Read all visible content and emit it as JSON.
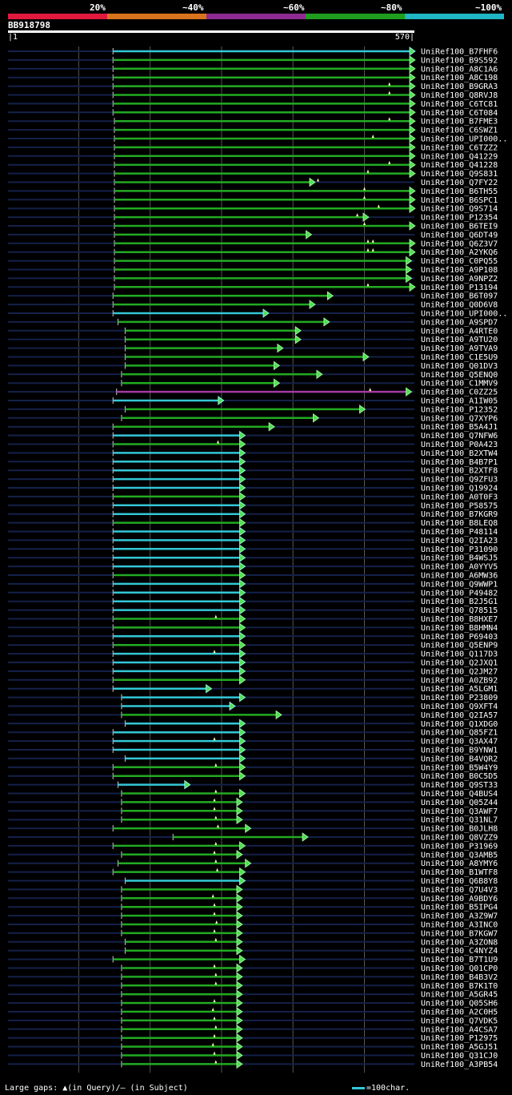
{
  "scale": {
    "labels": [
      "20%",
      "~40%",
      "~60%",
      "~80%",
      "~100%"
    ],
    "colors": [
      "#e0193d",
      "#d9731c",
      "#8e2a90",
      "#1f9d1f",
      "#1fb5c4"
    ]
  },
  "query": {
    "name": "BB918798",
    "start": "1",
    "end": "570",
    "length": 570
  },
  "footer": {
    "gaps_text": "Large gaps: ▲(in Query)/– (in Subject)",
    "legend_text": "=100char."
  },
  "hits": [
    {
      "name": "UniRef100_B7FHF6",
      "start": 148,
      "end": 570,
      "color": "cyan",
      "tri": []
    },
    {
      "name": "UniRef100_B9S592",
      "start": 148,
      "end": 570,
      "color": "green",
      "tri": []
    },
    {
      "name": "UniRef100_A8C1A6",
      "start": 148,
      "end": 570,
      "color": "green",
      "tri": []
    },
    {
      "name": "UniRef100_A8C198",
      "start": 148,
      "end": 570,
      "color": "green",
      "tri": []
    },
    {
      "name": "UniRef100_B9GRA3",
      "start": 148,
      "end": 570,
      "color": "green",
      "tri": [
        535
      ]
    },
    {
      "name": "UniRef100_Q8RVJ8",
      "start": 148,
      "end": 570,
      "color": "green",
      "tri": [
        535
      ]
    },
    {
      "name": "UniRef100_C6TC81",
      "start": 148,
      "end": 570,
      "color": "green",
      "tri": []
    },
    {
      "name": "UniRef100_C6T084",
      "start": 148,
      "end": 570,
      "color": "green",
      "tri": []
    },
    {
      "name": "UniRef100_B7FME3",
      "start": 150,
      "end": 570,
      "color": "green",
      "tri": [
        535
      ]
    },
    {
      "name": "UniRef100_C6SWZ1",
      "start": 150,
      "end": 570,
      "color": "green",
      "tri": []
    },
    {
      "name": "UniRef100_UPI000..",
      "start": 150,
      "end": 570,
      "color": "green",
      "tri": [
        512
      ]
    },
    {
      "name": "UniRef100_C6TZZ2",
      "start": 150,
      "end": 570,
      "color": "green",
      "tri": []
    },
    {
      "name": "UniRef100_Q41229",
      "start": 150,
      "end": 570,
      "color": "green",
      "tri": []
    },
    {
      "name": "UniRef100_Q41228",
      "start": 150,
      "end": 570,
      "color": "green",
      "tri": [
        535
      ]
    },
    {
      "name": "UniRef100_Q9S831",
      "start": 150,
      "end": 570,
      "color": "green",
      "tri": [
        505
      ]
    },
    {
      "name": "UniRef100_Q7FY22",
      "start": 150,
      "end": 430,
      "color": "green",
      "tri": [
        435
      ]
    },
    {
      "name": "UniRef100_B6TH55",
      "start": 150,
      "end": 570,
      "color": "green",
      "tri": [
        500
      ]
    },
    {
      "name": "UniRef100_B6SPC1",
      "start": 150,
      "end": 570,
      "color": "green",
      "tri": [
        500
      ]
    },
    {
      "name": "UniRef100_Q9S714",
      "start": 150,
      "end": 570,
      "color": "green",
      "tri": [
        520
      ]
    },
    {
      "name": "UniRef100_P12354",
      "start": 150,
      "end": 505,
      "color": "green",
      "tri": [
        490
      ]
    },
    {
      "name": "UniRef100_B6TEI9",
      "start": 150,
      "end": 570,
      "color": "green",
      "tri": [
        500
      ]
    },
    {
      "name": "UniRef100_Q6DT49",
      "start": 150,
      "end": 425,
      "color": "green",
      "tri": []
    },
    {
      "name": "UniRef100_Q6Z3V7",
      "start": 150,
      "end": 570,
      "color": "green",
      "tri": [
        505,
        512
      ]
    },
    {
      "name": "UniRef100_A2YKQ6",
      "start": 150,
      "end": 570,
      "color": "green",
      "tri": [
        505,
        512
      ]
    },
    {
      "name": "UniRef100_C0PQ55",
      "start": 150,
      "end": 565,
      "color": "green",
      "tri": []
    },
    {
      "name": "UniRef100_A9P108",
      "start": 150,
      "end": 565,
      "color": "green",
      "tri": []
    },
    {
      "name": "UniRef100_A9NPZ2",
      "start": 150,
      "end": 565,
      "color": "green",
      "tri": []
    },
    {
      "name": "UniRef100_P13194",
      "start": 150,
      "end": 570,
      "color": "green",
      "tri": [
        505
      ]
    },
    {
      "name": "UniRef100_B6T097",
      "start": 148,
      "end": 455,
      "color": "green",
      "tri": []
    },
    {
      "name": "UniRef100_Q0D6V8",
      "start": 148,
      "end": 430,
      "color": "green",
      "tri": []
    },
    {
      "name": "UniRef100_UPI000..",
      "start": 148,
      "end": 365,
      "color": "cyan",
      "tri": []
    },
    {
      "name": "UniRef100_A9SPD7",
      "start": 155,
      "end": 450,
      "color": "green",
      "tri": []
    },
    {
      "name": "UniRef100_A4RTE0",
      "start": 165,
      "end": 410,
      "color": "green",
      "tri": []
    },
    {
      "name": "UniRef100_A9TU20",
      "start": 165,
      "end": 410,
      "color": "green",
      "tri": []
    },
    {
      "name": "UniRef100_A9TVA9",
      "start": 165,
      "end": 385,
      "color": "green",
      "tri": []
    },
    {
      "name": "UniRef100_C1E5U9",
      "start": 165,
      "end": 505,
      "color": "green",
      "tri": []
    },
    {
      "name": "UniRef100_Q01DV3",
      "start": 165,
      "end": 380,
      "color": "green",
      "tri": []
    },
    {
      "name": "UniRef100_Q5ENQ0",
      "start": 160,
      "end": 440,
      "color": "green",
      "tri": []
    },
    {
      "name": "UniRef100_C1MMV9",
      "start": 160,
      "end": 380,
      "color": "green",
      "tri": []
    },
    {
      "name": "UniRef100_C0ZZ25",
      "start": 153,
      "end": 565,
      "color": "magenta",
      "tri": [
        508
      ]
    },
    {
      "name": "UniRef100_A1IW05",
      "start": 148,
      "end": 302,
      "color": "cyan",
      "tri": []
    },
    {
      "name": "UniRef100_P12352",
      "start": 165,
      "end": 500,
      "color": "green",
      "tri": []
    },
    {
      "name": "UniRef100_Q7XYP6",
      "start": 160,
      "end": 435,
      "color": "green",
      "tri": []
    },
    {
      "name": "UniRef100_B5A4J1",
      "start": 148,
      "end": 373,
      "color": "green",
      "tri": []
    },
    {
      "name": "UniRef100_Q7NFW6",
      "start": 148,
      "end": 332,
      "color": "cyan",
      "tri": []
    },
    {
      "name": "UniRef100_P0A423",
      "start": 148,
      "end": 332,
      "color": "green",
      "tri": [
        295
      ]
    },
    {
      "name": "UniRef100_B2XTW4",
      "start": 148,
      "end": 332,
      "color": "cyan",
      "tri": []
    },
    {
      "name": "UniRef100_B4B7P1",
      "start": 148,
      "end": 332,
      "color": "cyan",
      "tri": []
    },
    {
      "name": "UniRef100_B2XTF8",
      "start": 148,
      "end": 332,
      "color": "cyan",
      "tri": []
    },
    {
      "name": "UniRef100_Q9ZFU3",
      "start": 148,
      "end": 332,
      "color": "cyan",
      "tri": []
    },
    {
      "name": "UniRef100_Q19924",
      "start": 148,
      "end": 332,
      "color": "cyan",
      "tri": []
    },
    {
      "name": "UniRef100_A0T0F3",
      "start": 148,
      "end": 332,
      "color": "green",
      "tri": []
    },
    {
      "name": "UniRef100_P58575",
      "start": 148,
      "end": 332,
      "color": "cyan",
      "tri": []
    },
    {
      "name": "UniRef100_B7KGR9",
      "start": 148,
      "end": 332,
      "color": "cyan",
      "tri": []
    },
    {
      "name": "UniRef100_B8LEQ8",
      "start": 148,
      "end": 332,
      "color": "green",
      "tri": []
    },
    {
      "name": "UniRef100_P48114",
      "start": 148,
      "end": 332,
      "color": "cyan",
      "tri": []
    },
    {
      "name": "UniRef100_Q2IA23",
      "start": 148,
      "end": 332,
      "color": "cyan",
      "tri": []
    },
    {
      "name": "UniRef100_P31090",
      "start": 148,
      "end": 332,
      "color": "cyan",
      "tri": []
    },
    {
      "name": "UniRef100_B4WSJ5",
      "start": 148,
      "end": 332,
      "color": "cyan",
      "tri": []
    },
    {
      "name": "UniRef100_A0YYV5",
      "start": 148,
      "end": 332,
      "color": "cyan",
      "tri": []
    },
    {
      "name": "UniRef100_A6MW36",
      "start": 148,
      "end": 332,
      "color": "green",
      "tri": []
    },
    {
      "name": "UniRef100_Q9WWP1",
      "start": 148,
      "end": 332,
      "color": "cyan",
      "tri": []
    },
    {
      "name": "UniRef100_P49482",
      "start": 148,
      "end": 332,
      "color": "cyan",
      "tri": []
    },
    {
      "name": "UniRef100_B2J5G1",
      "start": 148,
      "end": 332,
      "color": "cyan",
      "tri": []
    },
    {
      "name": "UniRef100_Q78515",
      "start": 148,
      "end": 332,
      "color": "cyan",
      "tri": []
    },
    {
      "name": "UniRef100_B8HXE7",
      "start": 148,
      "end": 332,
      "color": "green",
      "tri": [
        292
      ]
    },
    {
      "name": "UniRef100_B8HMN4",
      "start": 148,
      "end": 332,
      "color": "green",
      "tri": []
    },
    {
      "name": "UniRef100_P69403",
      "start": 148,
      "end": 332,
      "color": "cyan",
      "tri": []
    },
    {
      "name": "UniRef100_Q5ENP9",
      "start": 148,
      "end": 332,
      "color": "green",
      "tri": []
    },
    {
      "name": "UniRef100_Q117D3",
      "start": 148,
      "end": 332,
      "color": "cyan",
      "tri": [
        290
      ]
    },
    {
      "name": "UniRef100_Q2JXQ1",
      "start": 148,
      "end": 332,
      "color": "cyan",
      "tri": []
    },
    {
      "name": "UniRef100_Q2JM27",
      "start": 148,
      "end": 332,
      "color": "cyan",
      "tri": []
    },
    {
      "name": "UniRef100_A0ZB92",
      "start": 148,
      "end": 332,
      "color": "green",
      "tri": []
    },
    {
      "name": "UniRef100_A5LGM1",
      "start": 148,
      "end": 285,
      "color": "cyan",
      "tri": []
    },
    {
      "name": "UniRef100_P23809",
      "start": 160,
      "end": 332,
      "color": "cyan",
      "tri": []
    },
    {
      "name": "UniRef100_Q9XFT4",
      "start": 160,
      "end": 318,
      "color": "cyan",
      "tri": []
    },
    {
      "name": "UniRef100_Q2IA57",
      "start": 160,
      "end": 383,
      "color": "green",
      "tri": []
    },
    {
      "name": "UniRef100_Q1XDG0",
      "start": 165,
      "end": 332,
      "color": "cyan",
      "tri": []
    },
    {
      "name": "UniRef100_Q85FZ1",
      "start": 148,
      "end": 332,
      "color": "cyan",
      "tri": []
    },
    {
      "name": "UniRef100_Q3AX47",
      "start": 148,
      "end": 332,
      "color": "cyan",
      "tri": [
        290
      ]
    },
    {
      "name": "UniRef100_B9YNW1",
      "start": 148,
      "end": 332,
      "color": "cyan",
      "tri": []
    },
    {
      "name": "UniRef100_B4VQR2",
      "start": 165,
      "end": 332,
      "color": "cyan",
      "tri": []
    },
    {
      "name": "UniRef100_B5W4Y9",
      "start": 148,
      "end": 332,
      "color": "green",
      "tri": [
        292
      ]
    },
    {
      "name": "UniRef100_B0C5D5",
      "start": 148,
      "end": 332,
      "color": "green",
      "tri": []
    },
    {
      "name": "UniRef100_Q9ST33",
      "start": 155,
      "end": 255,
      "color": "cyan",
      "tri": []
    },
    {
      "name": "UniRef100_Q4BUS4",
      "start": 160,
      "end": 332,
      "color": "green",
      "tri": [
        292
      ]
    },
    {
      "name": "UniRef100_Q05Z44",
      "start": 160,
      "end": 328,
      "color": "green",
      "tri": [
        290
      ]
    },
    {
      "name": "UniRef100_Q3AWF7",
      "start": 160,
      "end": 328,
      "color": "green",
      "tri": [
        290
      ]
    },
    {
      "name": "UniRef100_Q31NL7",
      "start": 160,
      "end": 328,
      "color": "green",
      "tri": [
        292
      ]
    },
    {
      "name": "UniRef100_B0JLH8",
      "start": 148,
      "end": 340,
      "color": "green",
      "tri": [
        295
      ]
    },
    {
      "name": "UniRef100_Q8VZZ9",
      "start": 232,
      "end": 420,
      "color": "green",
      "tri": []
    },
    {
      "name": "UniRef100_P31969",
      "start": 148,
      "end": 332,
      "color": "green",
      "tri": [
        292
      ]
    },
    {
      "name": "UniRef100_Q3AMB5",
      "start": 160,
      "end": 328,
      "color": "green",
      "tri": [
        290
      ]
    },
    {
      "name": "UniRef100_A8YMY6",
      "start": 155,
      "end": 340,
      "color": "green",
      "tri": [
        292
      ]
    },
    {
      "name": "UniRef100_B1WTF8",
      "start": 148,
      "end": 332,
      "color": "green",
      "tri": [
        294
      ]
    },
    {
      "name": "UniRef100_Q6B8Y8",
      "start": 165,
      "end": 332,
      "color": "cyan",
      "tri": []
    },
    {
      "name": "UniRef100_Q7U4V3",
      "start": 160,
      "end": 328,
      "color": "green",
      "tri": []
    },
    {
      "name": "UniRef100_A9BDY6",
      "start": 160,
      "end": 328,
      "color": "green",
      "tri": [
        288
      ]
    },
    {
      "name": "UniRef100_B5IPG4",
      "start": 160,
      "end": 328,
      "color": "green",
      "tri": [
        290
      ]
    },
    {
      "name": "UniRef100_A3Z9W7",
      "start": 160,
      "end": 328,
      "color": "green",
      "tri": [
        290
      ]
    },
    {
      "name": "UniRef100_A3INC0",
      "start": 160,
      "end": 328,
      "color": "green",
      "tri": [
        293
      ]
    },
    {
      "name": "UniRef100_B7KGW7",
      "start": 160,
      "end": 328,
      "color": "green",
      "tri": [
        290
      ]
    },
    {
      "name": "UniRef100_A3ZON8",
      "start": 165,
      "end": 328,
      "color": "green",
      "tri": [
        292
      ]
    },
    {
      "name": "UniRef100_C4NYZ4",
      "start": 165,
      "end": 328,
      "color": "green",
      "tri": []
    },
    {
      "name": "UniRef100_B7T1U9",
      "start": 148,
      "end": 332,
      "color": "green",
      "tri": []
    },
    {
      "name": "UniRef100_Q01CP0",
      "start": 160,
      "end": 328,
      "color": "green",
      "tri": [
        290
      ]
    },
    {
      "name": "UniRef100_B4B3V2",
      "start": 160,
      "end": 328,
      "color": "green",
      "tri": [
        292
      ]
    },
    {
      "name": "UniRef100_B7K1T0",
      "start": 160,
      "end": 328,
      "color": "green",
      "tri": [
        292
      ]
    },
    {
      "name": "UniRef100_A5GR45",
      "start": 160,
      "end": 328,
      "color": "green",
      "tri": []
    },
    {
      "name": "UniRef100_Q05SH6",
      "start": 160,
      "end": 328,
      "color": "green",
      "tri": [
        290
      ]
    },
    {
      "name": "UniRef100_A2C0H5",
      "start": 160,
      "end": 328,
      "color": "green",
      "tri": [
        288
      ]
    },
    {
      "name": "UniRef100_Q7VDK5",
      "start": 160,
      "end": 328,
      "color": "green",
      "tri": [
        290
      ]
    },
    {
      "name": "UniRef100_A4CSA7",
      "start": 160,
      "end": 328,
      "color": "green",
      "tri": [
        292
      ]
    },
    {
      "name": "UniRef100_P12975",
      "start": 160,
      "end": 328,
      "color": "green",
      "tri": [
        290
      ]
    },
    {
      "name": "UniRef100_A5GJ51",
      "start": 160,
      "end": 328,
      "color": "green",
      "tri": [
        288
      ]
    },
    {
      "name": "UniRef100_Q31CJ0",
      "start": 160,
      "end": 328,
      "color": "green",
      "tri": [
        290
      ]
    },
    {
      "name": "UniRef100_A3PB54",
      "start": 160,
      "end": 328,
      "color": "green",
      "tri": [
        292
      ]
    }
  ]
}
